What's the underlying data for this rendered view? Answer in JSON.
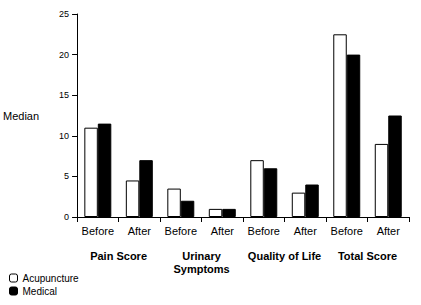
{
  "chart_data": {
    "type": "bar",
    "y_label": "Median",
    "categories": [
      "Before",
      "After",
      "Before",
      "After",
      "Before",
      "After",
      "Before",
      "After"
    ],
    "group_labels": [
      "Pain Score",
      "Urinary\nSymptoms",
      "Quality of Life",
      "Total Score"
    ],
    "series": [
      {
        "name": "Acupuncture",
        "color": "#ffffff",
        "values": [
          11,
          4.5,
          3.5,
          1,
          7,
          3,
          22.5,
          9
        ]
      },
      {
        "name": "Medical",
        "color": "#000000",
        "values": [
          11.5,
          7,
          2,
          1,
          6,
          4,
          20,
          12.5
        ]
      }
    ],
    "ylim": [
      0,
      25
    ],
    "yticks": [
      0,
      5,
      10,
      15,
      20,
      25
    ],
    "grid": false,
    "legend": "bottom-left"
  }
}
